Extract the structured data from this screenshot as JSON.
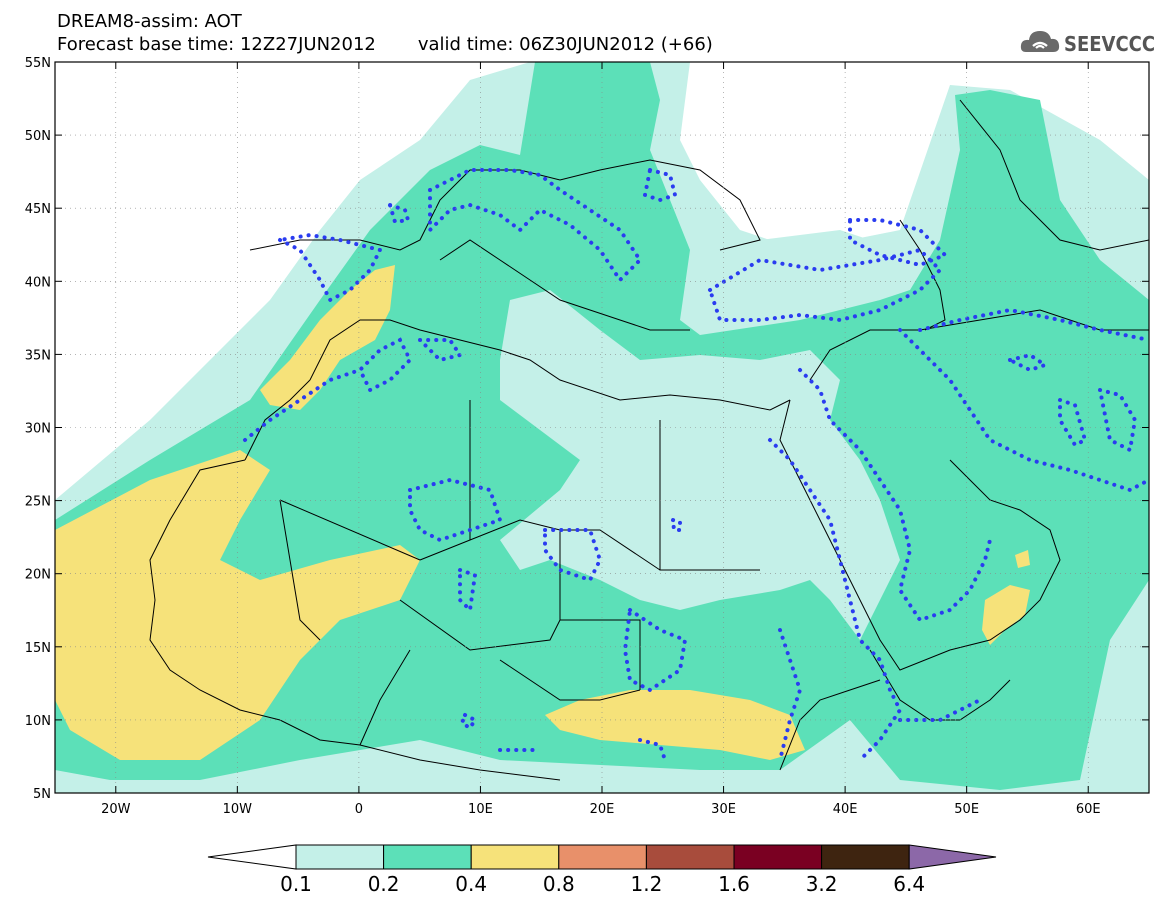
{
  "title": {
    "line1": "DREAM8-assim: AOT",
    "base_time": "Forecast base time: 12Z27JUN2012",
    "valid_time": "valid time: 06Z30JUN2012 (+66)"
  },
  "logo": {
    "text": "SEEVCCC",
    "icon": "cloud-logo-icon"
  },
  "map": {
    "lon_range": [
      -25,
      65
    ],
    "lat_range": [
      5,
      55
    ],
    "lat_ticks": [
      {
        "value": 55,
        "label": "55N"
      },
      {
        "value": 50,
        "label": "50N"
      },
      {
        "value": 45,
        "label": "45N"
      },
      {
        "value": 40,
        "label": "40N"
      },
      {
        "value": 35,
        "label": "35N"
      },
      {
        "value": 30,
        "label": "30N"
      },
      {
        "value": 25,
        "label": "25N"
      },
      {
        "value": 20,
        "label": "20N"
      },
      {
        "value": 15,
        "label": "15N"
      },
      {
        "value": 10,
        "label": "10N"
      },
      {
        "value": 5,
        "label": "5N"
      }
    ],
    "lon_ticks": [
      {
        "value": -20,
        "label": "20W"
      },
      {
        "value": -10,
        "label": "10W"
      },
      {
        "value": 0,
        "label": "0"
      },
      {
        "value": 10,
        "label": "10E"
      },
      {
        "value": 20,
        "label": "20E"
      },
      {
        "value": 30,
        "label": "30E"
      },
      {
        "value": 40,
        "label": "40E"
      },
      {
        "value": 50,
        "label": "50E"
      },
      {
        "value": 60,
        "label": "60E"
      }
    ],
    "grid": "dotted",
    "contour_style": "blue dotted"
  },
  "colorbar": {
    "labels": [
      "0.1",
      "0.2",
      "0.4",
      "0.8",
      "1.2",
      "1.6",
      "3.2",
      "6.4"
    ],
    "colors": [
      "#ffffff",
      "#c4f0e8",
      "#5ce0b8",
      "#f6e27a",
      "#e8906a",
      "#a84c3c",
      "#7a0022",
      "#3e2410",
      "#8c68a8"
    ]
  }
}
